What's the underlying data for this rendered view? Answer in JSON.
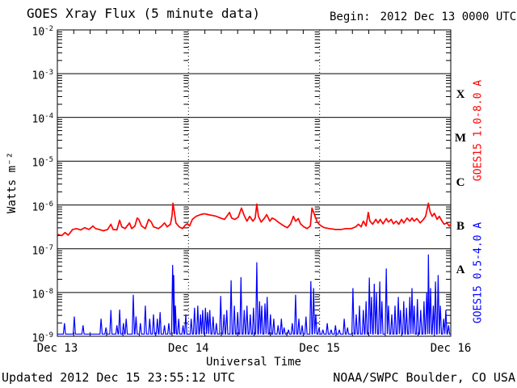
{
  "header": {
    "title": "GOES Xray Flux (5 minute data)",
    "begin_label": "Begin:",
    "begin_value": "2012 Dec 13 0000 UTC"
  },
  "footer": {
    "updated": "Updated 2012 Dec 15 23:55:12 UTC",
    "credit": "NOAA/SWPC Boulder, CO USA"
  },
  "colors": {
    "long_channel": "#ff0000",
    "short_channel": "#0000ff",
    "axis": "#000000",
    "background": "#ffffff"
  },
  "chart_data": {
    "type": "line",
    "title": "GOES Xray Flux (5 minute data)",
    "xlabel": "Universal Time",
    "ylabel": "Watts m⁻²",
    "x_axis": {
      "range_hours": [
        0,
        72
      ],
      "day_tick_hours": [
        0,
        24,
        48,
        72
      ],
      "tick_labels": [
        "Dec 13",
        "Dec 14",
        "Dec 15",
        "Dec 16"
      ],
      "minor_tick_interval_hours": 3,
      "day_gridlines_hours": [
        24,
        48
      ]
    },
    "y_axis": {
      "scale": "log10",
      "exponents": [
        -2,
        -3,
        -4,
        -5,
        -6,
        -7,
        -8,
        -9
      ],
      "unit": "Watts m⁻²"
    },
    "flare_classes": [
      {
        "label": "X",
        "mid_exponent": -3.5
      },
      {
        "label": "M",
        "mid_exponent": -4.5
      },
      {
        "label": "C",
        "mid_exponent": -5.5
      },
      {
        "label": "B",
        "mid_exponent": -6.5
      },
      {
        "label": "A",
        "mid_exponent": -7.5
      }
    ],
    "grid": {
      "horizontal_decades": true,
      "vertical_day_lines": "dotted"
    },
    "legend_position": "right-rotated",
    "series": [
      {
        "name": "GOES15 1.0-8.0 A",
        "color": "#ff0000",
        "style": "continuous",
        "points_t_log10flux": [
          [
            0,
            -6.67
          ],
          [
            0.8,
            -6.7
          ],
          [
            1.4,
            -6.63
          ],
          [
            2.0,
            -6.69
          ],
          [
            2.8,
            -6.56
          ],
          [
            3.5,
            -6.54
          ],
          [
            4.3,
            -6.57
          ],
          [
            5.0,
            -6.52
          ],
          [
            5.8,
            -6.56
          ],
          [
            6.5,
            -6.48
          ],
          [
            7.0,
            -6.54
          ],
          [
            7.7,
            -6.56
          ],
          [
            8.4,
            -6.59
          ],
          [
            9.2,
            -6.56
          ],
          [
            9.8,
            -6.44
          ],
          [
            10.2,
            -6.56
          ],
          [
            10.9,
            -6.57
          ],
          [
            11.4,
            -6.35
          ],
          [
            11.8,
            -6.5
          ],
          [
            12.4,
            -6.54
          ],
          [
            13.2,
            -6.41
          ],
          [
            13.6,
            -6.54
          ],
          [
            14.2,
            -6.48
          ],
          [
            14.6,
            -6.3
          ],
          [
            14.9,
            -6.33
          ],
          [
            15.4,
            -6.48
          ],
          [
            16.1,
            -6.54
          ],
          [
            16.7,
            -6.33
          ],
          [
            17.2,
            -6.39
          ],
          [
            17.6,
            -6.5
          ],
          [
            18.5,
            -6.54
          ],
          [
            19.1,
            -6.48
          ],
          [
            19.6,
            -6.41
          ],
          [
            20.1,
            -6.5
          ],
          [
            20.7,
            -6.44
          ],
          [
            21.0,
            -6.24
          ],
          [
            21.15,
            -5.96
          ],
          [
            21.4,
            -6.15
          ],
          [
            21.7,
            -6.41
          ],
          [
            22.3,
            -6.5
          ],
          [
            22.9,
            -6.54
          ],
          [
            23.4,
            -6.46
          ],
          [
            23.8,
            -6.43
          ],
          [
            24.2,
            -6.48
          ],
          [
            24.7,
            -6.33
          ],
          [
            25.4,
            -6.26
          ],
          [
            26.2,
            -6.22
          ],
          [
            26.9,
            -6.2
          ],
          [
            27.6,
            -6.22
          ],
          [
            28.4,
            -6.24
          ],
          [
            29.1,
            -6.26
          ],
          [
            29.9,
            -6.3
          ],
          [
            30.6,
            -6.33
          ],
          [
            31.0,
            -6.26
          ],
          [
            31.5,
            -6.17
          ],
          [
            31.9,
            -6.3
          ],
          [
            32.5,
            -6.33
          ],
          [
            33.1,
            -6.28
          ],
          [
            33.7,
            -6.07
          ],
          [
            34.2,
            -6.24
          ],
          [
            34.7,
            -6.37
          ],
          [
            35.2,
            -6.26
          ],
          [
            35.8,
            -6.37
          ],
          [
            36.2,
            -6.3
          ],
          [
            36.5,
            -5.98
          ],
          [
            36.8,
            -6.26
          ],
          [
            37.3,
            -6.39
          ],
          [
            37.9,
            -6.3
          ],
          [
            38.3,
            -6.22
          ],
          [
            38.9,
            -6.37
          ],
          [
            39.3,
            -6.3
          ],
          [
            39.8,
            -6.33
          ],
          [
            40.4,
            -6.39
          ],
          [
            41.0,
            -6.44
          ],
          [
            41.5,
            -6.48
          ],
          [
            42.1,
            -6.52
          ],
          [
            42.7,
            -6.43
          ],
          [
            43.2,
            -6.26
          ],
          [
            43.6,
            -6.37
          ],
          [
            44.1,
            -6.31
          ],
          [
            44.5,
            -6.43
          ],
          [
            45.1,
            -6.5
          ],
          [
            45.7,
            -6.54
          ],
          [
            46.3,
            -6.48
          ],
          [
            46.6,
            -6.07
          ],
          [
            47.0,
            -6.2
          ],
          [
            47.5,
            -6.37
          ],
          [
            47.9,
            -6.44
          ],
          [
            48.3,
            -6.48
          ],
          [
            48.9,
            -6.52
          ],
          [
            49.8,
            -6.54
          ],
          [
            50.9,
            -6.56
          ],
          [
            51.9,
            -6.56
          ],
          [
            52.8,
            -6.54
          ],
          [
            53.8,
            -6.54
          ],
          [
            54.6,
            -6.5
          ],
          [
            55.1,
            -6.44
          ],
          [
            55.6,
            -6.5
          ],
          [
            56.0,
            -6.37
          ],
          [
            56.5,
            -6.48
          ],
          [
            56.9,
            -6.17
          ],
          [
            57.2,
            -6.37
          ],
          [
            57.7,
            -6.44
          ],
          [
            58.3,
            -6.33
          ],
          [
            58.7,
            -6.41
          ],
          [
            59.1,
            -6.33
          ],
          [
            59.6,
            -6.43
          ],
          [
            60.2,
            -6.31
          ],
          [
            60.6,
            -6.39
          ],
          [
            61.1,
            -6.33
          ],
          [
            61.5,
            -6.43
          ],
          [
            62.0,
            -6.37
          ],
          [
            62.5,
            -6.44
          ],
          [
            63.0,
            -6.33
          ],
          [
            63.4,
            -6.41
          ],
          [
            64.0,
            -6.3
          ],
          [
            64.5,
            -6.37
          ],
          [
            64.9,
            -6.3
          ],
          [
            65.3,
            -6.37
          ],
          [
            65.8,
            -6.31
          ],
          [
            66.4,
            -6.41
          ],
          [
            67.0,
            -6.33
          ],
          [
            67.4,
            -6.26
          ],
          [
            67.9,
            -5.96
          ],
          [
            68.2,
            -6.15
          ],
          [
            68.6,
            -6.26
          ],
          [
            69.0,
            -6.19
          ],
          [
            69.5,
            -6.33
          ],
          [
            69.9,
            -6.26
          ],
          [
            70.4,
            -6.37
          ],
          [
            70.8,
            -6.44
          ],
          [
            71.3,
            -6.41
          ],
          [
            71.7,
            -6.48
          ],
          [
            72,
            -6.44
          ]
        ]
      },
      {
        "name": "GOES15 0.5-4.0 A",
        "color": "#0000ff",
        "style": "spikes",
        "baseline_log10flux": -8.95,
        "spike_halfwidth_hours": 0.2,
        "spikes_t_log10flux": [
          [
            1.3,
            -8.7
          ],
          [
            3.1,
            -8.55
          ],
          [
            4.7,
            -8.75
          ],
          [
            8.0,
            -8.6
          ],
          [
            8.9,
            -8.8
          ],
          [
            9.8,
            -8.4
          ],
          [
            10.9,
            -8.75
          ],
          [
            11.4,
            -8.39
          ],
          [
            12.1,
            -8.7
          ],
          [
            12.6,
            -8.6
          ],
          [
            13.9,
            -8.05
          ],
          [
            14.4,
            -8.55
          ],
          [
            15.2,
            -8.7
          ],
          [
            16.1,
            -8.3
          ],
          [
            16.9,
            -8.6
          ],
          [
            17.6,
            -8.5
          ],
          [
            18.3,
            -8.6
          ],
          [
            18.8,
            -8.45
          ],
          [
            19.6,
            -8.75
          ],
          [
            20.4,
            -8.7
          ],
          [
            21.1,
            -7.37
          ],
          [
            21.3,
            -7.6
          ],
          [
            21.6,
            -8.3
          ],
          [
            22.2,
            -8.6
          ],
          [
            23.0,
            -8.75
          ],
          [
            23.5,
            -8.5
          ],
          [
            24.5,
            -8.6
          ],
          [
            25.1,
            -8.35
          ],
          [
            25.7,
            -8.3
          ],
          [
            26.2,
            -8.5
          ],
          [
            26.6,
            -8.4
          ],
          [
            27.1,
            -8.35
          ],
          [
            27.5,
            -8.45
          ],
          [
            27.9,
            -8.4
          ],
          [
            28.5,
            -8.55
          ],
          [
            29.1,
            -8.7
          ],
          [
            29.9,
            -8.08
          ],
          [
            30.5,
            -8.5
          ],
          [
            31.0,
            -8.4
          ],
          [
            31.8,
            -7.72
          ],
          [
            32.4,
            -8.3
          ],
          [
            33.0,
            -8.45
          ],
          [
            33.6,
            -7.65
          ],
          [
            34.2,
            -8.4
          ],
          [
            34.7,
            -8.3
          ],
          [
            35.3,
            -8.5
          ],
          [
            35.9,
            -8.35
          ],
          [
            36.5,
            -7.31
          ],
          [
            37.0,
            -8.2
          ],
          [
            37.4,
            -8.3
          ],
          [
            38.0,
            -8.25
          ],
          [
            38.4,
            -8.1
          ],
          [
            39.0,
            -8.5
          ],
          [
            39.6,
            -8.6
          ],
          [
            40.4,
            -8.75
          ],
          [
            41.0,
            -8.6
          ],
          [
            41.5,
            -8.8
          ],
          [
            42.3,
            -8.85
          ],
          [
            43.0,
            -8.7
          ],
          [
            43.6,
            -8.05
          ],
          [
            44.2,
            -8.6
          ],
          [
            44.8,
            -8.75
          ],
          [
            45.5,
            -8.55
          ],
          [
            46.4,
            -7.74
          ],
          [
            46.9,
            -7.9
          ],
          [
            47.3,
            -8.5
          ],
          [
            47.9,
            -8.8
          ],
          [
            48.6,
            -8.85
          ],
          [
            49.4,
            -8.7
          ],
          [
            50.1,
            -8.85
          ],
          [
            50.9,
            -8.75
          ],
          [
            51.6,
            -8.85
          ],
          [
            52.5,
            -8.6
          ],
          [
            53.1,
            -8.8
          ],
          [
            54.1,
            -7.9
          ],
          [
            54.7,
            -8.5
          ],
          [
            55.3,
            -8.3
          ],
          [
            56.0,
            -8.4
          ],
          [
            56.5,
            -8.2
          ],
          [
            57.1,
            -7.66
          ],
          [
            57.5,
            -8.1
          ],
          [
            58.0,
            -7.8
          ],
          [
            58.4,
            -8.0
          ],
          [
            59.0,
            -7.75
          ],
          [
            59.4,
            -8.2
          ],
          [
            60.2,
            -7.45
          ],
          [
            60.6,
            -8.3
          ],
          [
            61.2,
            -8.5
          ],
          [
            61.8,
            -8.3
          ],
          [
            62.4,
            -8.1
          ],
          [
            62.8,
            -8.4
          ],
          [
            63.4,
            -8.2
          ],
          [
            63.9,
            -8.35
          ],
          [
            64.5,
            -8.1
          ],
          [
            64.9,
            -7.9
          ],
          [
            65.3,
            -8.3
          ],
          [
            65.9,
            -8.15
          ],
          [
            66.5,
            -8.4
          ],
          [
            67.1,
            -8.2
          ],
          [
            67.6,
            -8.0
          ],
          [
            67.9,
            -7.13
          ],
          [
            68.3,
            -7.9
          ],
          [
            68.8,
            -8.3
          ],
          [
            69.2,
            -7.75
          ],
          [
            69.7,
            -7.6
          ],
          [
            70.1,
            -8.3
          ],
          [
            70.7,
            -8.6
          ],
          [
            71.1,
            -8.4
          ],
          [
            71.6,
            -8.75
          ]
        ]
      }
    ]
  }
}
